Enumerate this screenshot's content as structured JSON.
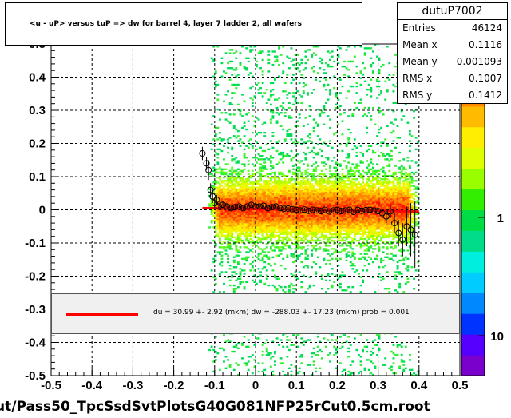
{
  "title": "<u - uP>       versus  tuP =>  dw for barrel 4, layer 7 ladder 2, all wafers",
  "stats": {
    "name": "dutuP7002",
    "rows": [
      {
        "key": "Entries",
        "value": "46124"
      },
      {
        "key": "Mean x",
        "value": "0.1116"
      },
      {
        "key": "Mean y",
        "value": "-0.001093"
      },
      {
        "key": "RMS x",
        "value": "0.1007"
      },
      {
        "key": "RMS y",
        "value": "0.1412"
      }
    ]
  },
  "fit_text": "du =   30.99 +-  2.92 (mkm) dw = -288.03 +- 17.23 (mkm) prob = 0.001",
  "footer": "ut/Pass50_TpcSsdSvtPlotsG40G081NFP25rCut0.5cm.root",
  "colors": {
    "fit": "#ff0000",
    "profile": "#000000",
    "histogram_low": "#00cc44",
    "histogram_high": "#ff2200"
  },
  "chart_data": {
    "type": "heatmap",
    "x_range": [
      -0.5,
      0.5
    ],
    "y_range": [
      -0.5,
      0.5
    ],
    "x_ticks": [
      "-0.5",
      "-0.4",
      "-0.3",
      "-0.2",
      "-0.1",
      "0",
      "0.1",
      "0.2",
      "0.3",
      "0.4",
      "0.5"
    ],
    "y_ticks": [
      "-0.5",
      "-0.4",
      "-0.3",
      "-0.2",
      "-0.1",
      "0",
      "0.1",
      "0.2",
      "0.3",
      "0.4",
      "0.5"
    ],
    "z_scale": "log",
    "z_ticks": [
      "1",
      "10"
    ],
    "grid": true,
    "histogram_x_extent": [
      -0.12,
      0.4
    ],
    "fit_line": {
      "x": [
        -0.13,
        0.4
      ],
      "y": [
        0.005,
        -0.005
      ]
    },
    "profile": {
      "x": [
        -0.13,
        -0.12,
        -0.115,
        -0.11,
        -0.105,
        -0.1,
        -0.095,
        -0.09,
        -0.08,
        -0.07,
        -0.06,
        -0.05,
        -0.04,
        -0.03,
        -0.02,
        -0.01,
        0.0,
        0.01,
        0.02,
        0.03,
        0.04,
        0.05,
        0.06,
        0.07,
        0.08,
        0.09,
        0.1,
        0.11,
        0.12,
        0.13,
        0.14,
        0.15,
        0.16,
        0.17,
        0.18,
        0.19,
        0.2,
        0.21,
        0.22,
        0.23,
        0.24,
        0.25,
        0.26,
        0.27,
        0.28,
        0.29,
        0.3,
        0.31,
        0.32,
        0.33,
        0.34,
        0.35,
        0.36,
        0.37,
        0.38,
        0.39
      ],
      "y": [
        0.17,
        0.14,
        0.12,
        0.06,
        0.04,
        0.02,
        0.03,
        0.01,
        0.015,
        0.01,
        0.005,
        0.008,
        0.01,
        0.005,
        0.01,
        0.015,
        0.01,
        0.01,
        0.012,
        0.005,
        0.008,
        0.01,
        0.005,
        0.003,
        0.004,
        0.002,
        0.0,
        -0.002,
        0.001,
        -0.003,
        0.0,
        -0.002,
        -0.004,
        0.0,
        -0.005,
        -0.002,
        0.0,
        -0.004,
        -0.002,
        0.0,
        -0.006,
        0.0,
        -0.003,
        -0.001,
        0.0,
        -0.002,
        -0.004,
        -0.01,
        -0.02,
        -0.005,
        -0.04,
        -0.07,
        -0.09,
        -0.05,
        -0.06,
        -0.075
      ],
      "err": [
        0.02,
        0.02,
        0.03,
        0.02,
        0.02,
        0.015,
        0.015,
        0.01,
        0.01,
        0.008,
        0.006,
        0.006,
        0.005,
        0.005,
        0.005,
        0.005,
        0.005,
        0.005,
        0.005,
        0.005,
        0.005,
        0.005,
        0.005,
        0.005,
        0.005,
        0.005,
        0.005,
        0.005,
        0.005,
        0.005,
        0.005,
        0.005,
        0.005,
        0.005,
        0.005,
        0.005,
        0.005,
        0.005,
        0.005,
        0.005,
        0.005,
        0.005,
        0.005,
        0.006,
        0.006,
        0.008,
        0.01,
        0.015,
        0.02,
        0.02,
        0.03,
        0.04,
        0.05,
        0.06,
        0.08,
        0.1
      ]
    }
  }
}
